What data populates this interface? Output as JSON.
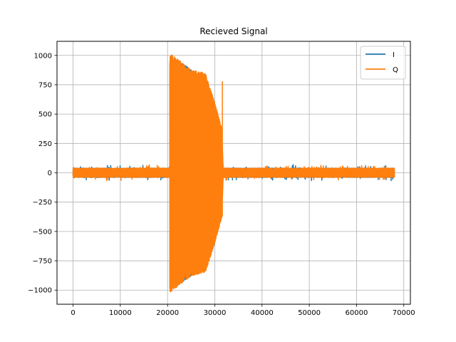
{
  "chart_data": {
    "type": "line",
    "title": "Recieved Signal",
    "xlabel": "",
    "ylabel": "",
    "xlim": [
      -3400,
      71400
    ],
    "ylim": [
      -1120,
      1120
    ],
    "grid": true,
    "legend_placement": "top-right",
    "x_ticks": [
      0,
      10000,
      20000,
      30000,
      40000,
      50000,
      60000,
      70000
    ],
    "x_tick_labels": [
      "0",
      "10000",
      "20000",
      "30000",
      "40000",
      "50000",
      "60000",
      "70000"
    ],
    "y_ticks": [
      -1000,
      -750,
      -500,
      -250,
      0,
      250,
      500,
      750,
      1000
    ],
    "y_tick_labels": [
      "−1000",
      "−750",
      "−500",
      "−250",
      "0",
      "250",
      "500",
      "750",
      "1000"
    ],
    "series": [
      {
        "name": "I",
        "color": "#1f77b4",
        "samples": 68000,
        "noise_amplitude": 40,
        "burst": {
          "start": 20500,
          "end": 31800,
          "amplitude_envelope": [
            [
              20500,
              1000
            ],
            [
              25000,
              880
            ],
            [
              28000,
              820
            ],
            [
              30000,
              600
            ],
            [
              31500,
              300
            ],
            [
              31800,
              0
            ]
          ]
        }
      },
      {
        "name": "Q",
        "color": "#ff7f0e",
        "samples": 68000,
        "noise_amplitude": 40,
        "burst": {
          "start": 20500,
          "end": 31800,
          "amplitude_envelope": [
            [
              20500,
              1020
            ],
            [
              25000,
              880
            ],
            [
              28000,
              850
            ],
            [
              30000,
              600
            ],
            [
              31500,
              380
            ],
            [
              31800,
              0
            ]
          ]
        },
        "spike": {
          "x": 31600,
          "high": 780,
          "low": -370
        }
      }
    ]
  }
}
